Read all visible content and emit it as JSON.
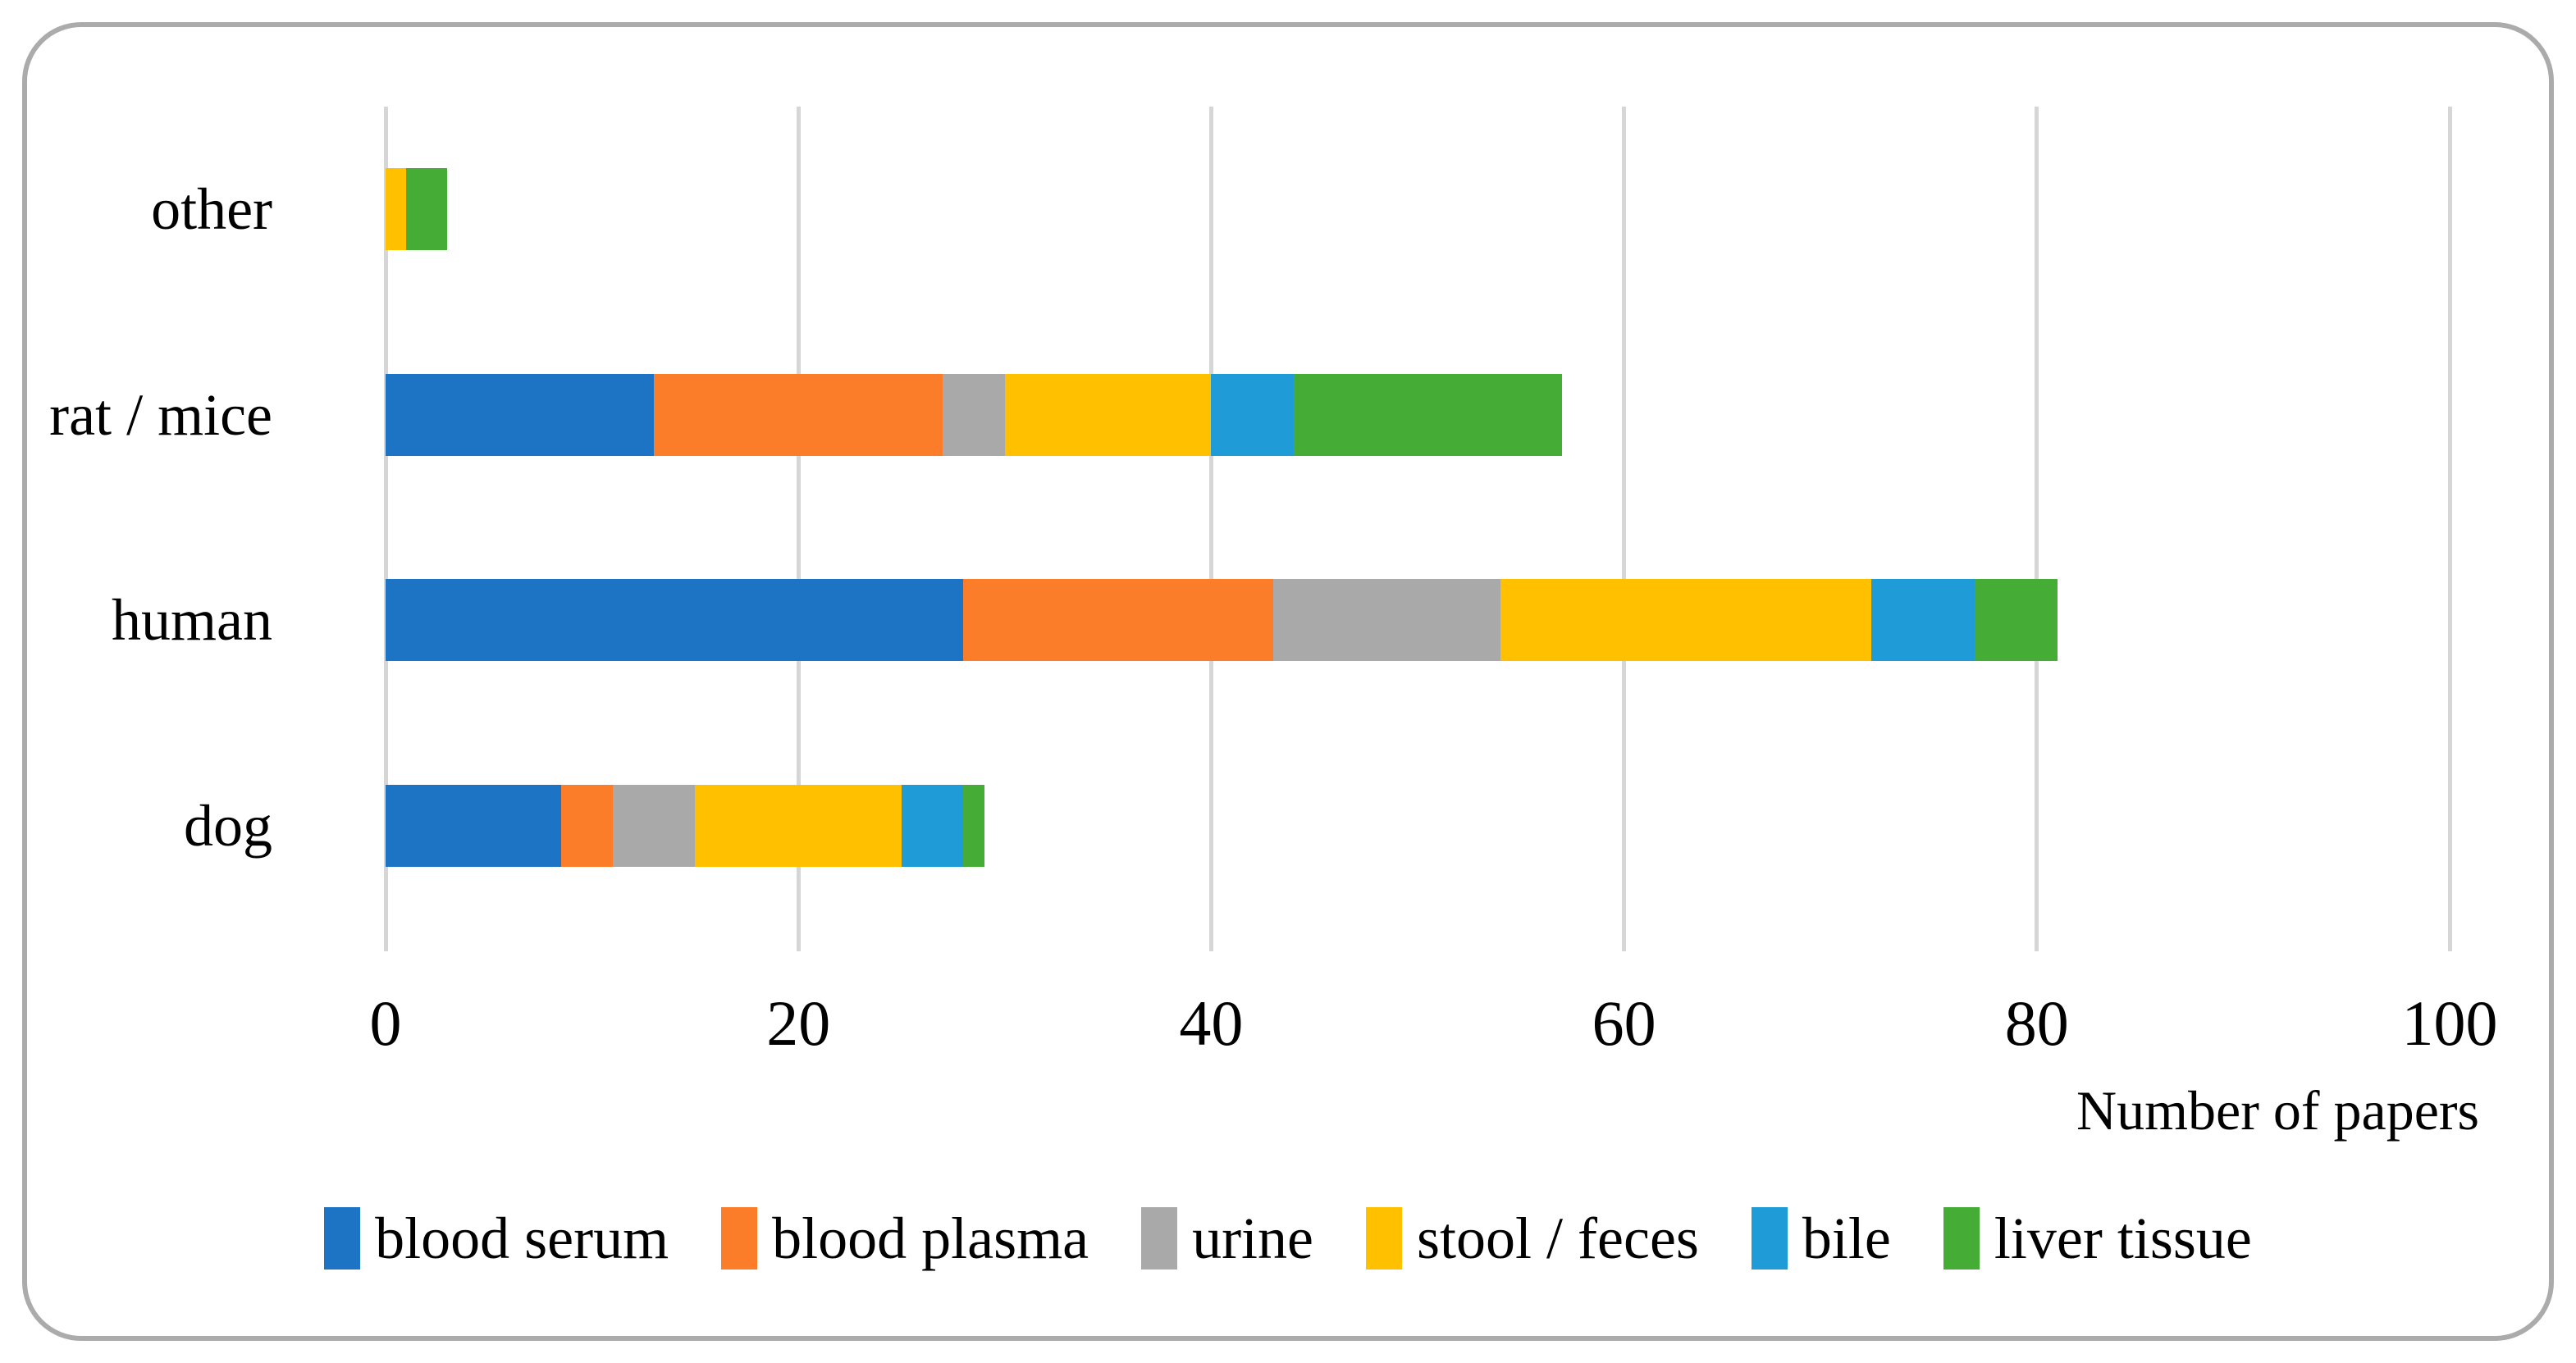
{
  "figure": {
    "border_color": "#ABABAB",
    "background_color": "#FFFFFF",
    "gridline_color": "#D6D6D6",
    "text_color": "#000000"
  },
  "chart_data": {
    "type": "bar",
    "orientation": "horizontal",
    "stacked": true,
    "title": "",
    "xlabel": "Number of papers",
    "ylabel": "",
    "xlim": [
      0,
      100
    ],
    "x_ticks": [
      0,
      20,
      40,
      60,
      80,
      100
    ],
    "x_tick_labels": [
      "0",
      "20",
      "40",
      "60",
      "80",
      "100"
    ],
    "grid": "vertical",
    "legend_position": "bottom",
    "categories": [
      "other",
      "rat / mice",
      "human",
      "dog"
    ],
    "series": [
      {
        "name": "blood serum",
        "color": "#1E74C4",
        "values": [
          0,
          13,
          28,
          8.5
        ]
      },
      {
        "name": "blood plasma",
        "color": "#FC7D29",
        "values": [
          0,
          14,
          15,
          2.5
        ]
      },
      {
        "name": "urine",
        "color": "#A9A9A9",
        "values": [
          0,
          3,
          11,
          4
        ]
      },
      {
        "name": "stool / feces",
        "color": "#FFC000",
        "values": [
          1,
          10,
          18,
          10
        ]
      },
      {
        "name": "bile",
        "color": "#1F9CD8",
        "values": [
          0,
          4,
          5,
          3
        ]
      },
      {
        "name": "liver tissue",
        "color": "#45AC35",
        "values": [
          2,
          13,
          4,
          1
        ]
      }
    ]
  }
}
